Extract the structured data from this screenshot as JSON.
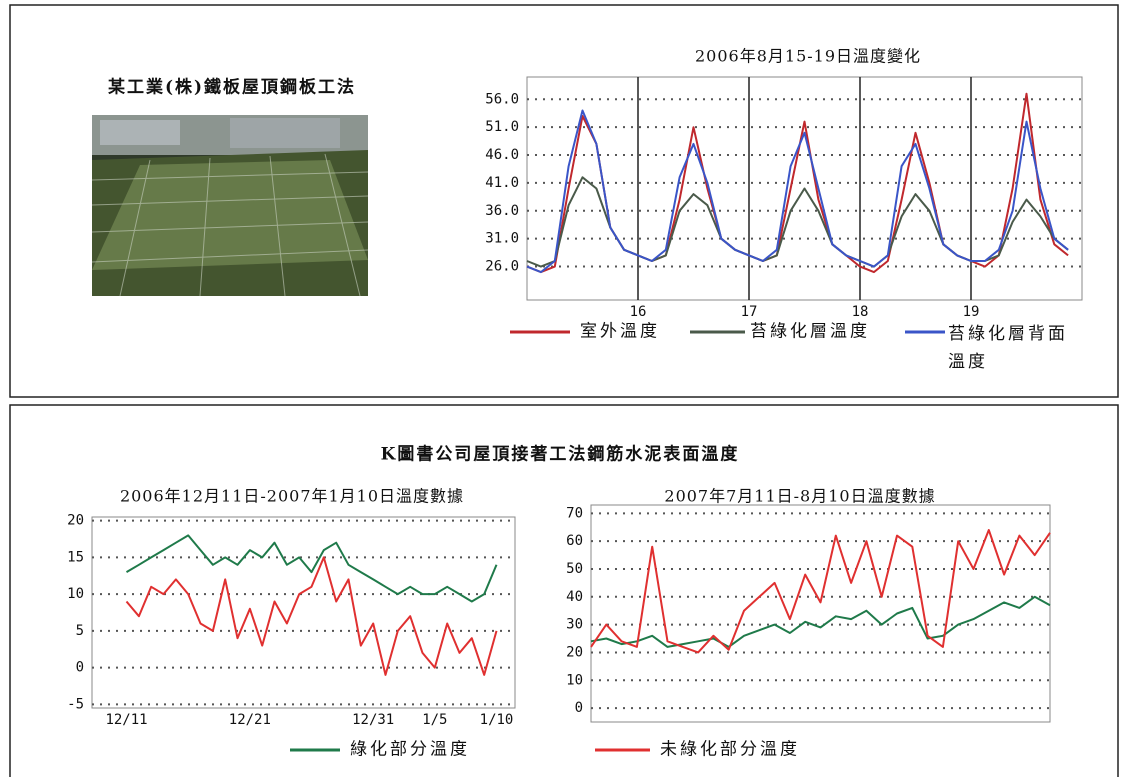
{
  "photo_caption": "某工業(株)鐵板屋頂鋼板工法",
  "section_title": "K圖書公司屋頂接著工法鋼筋水泥表面溫度",
  "chart_data": [
    {
      "type": "line",
      "title": "2006年8月15-19日溫度變化",
      "x": [
        15,
        15.125,
        15.25,
        15.375,
        15.5,
        15.625,
        15.75,
        15.875,
        16,
        16.125,
        16.25,
        16.375,
        16.5,
        16.625,
        16.75,
        16.875,
        17,
        17.125,
        17.25,
        17.375,
        17.5,
        17.625,
        17.75,
        17.875,
        18,
        18.125,
        18.25,
        18.375,
        18.5,
        18.625,
        18.75,
        18.875,
        19,
        19.125,
        19.25,
        19.375,
        19.5,
        19.625,
        19.75,
        19.875
      ],
      "xlim": [
        15,
        20
      ],
      "xticks": [
        16,
        17,
        18,
        19
      ],
      "ylim": [
        20,
        60
      ],
      "yticks": [
        {
          "value": 26,
          "label": "26.0"
        },
        {
          "value": 31,
          "label": "31.0"
        },
        {
          "value": 36,
          "label": "36.0"
        },
        {
          "value": 41,
          "label": "41.0"
        },
        {
          "value": 46,
          "label": "46.0"
        },
        {
          "value": 51,
          "label": "51.0"
        },
        {
          "value": 56,
          "label": "56.0"
        }
      ],
      "grid": true,
      "series": [
        {
          "name": "室外溫度",
          "color": "#c0282d",
          "values": [
            26,
            25,
            26,
            40,
            53,
            48,
            33,
            29,
            28,
            27,
            28,
            38,
            51,
            40,
            31,
            29,
            28,
            27,
            28,
            40,
            52,
            38,
            30,
            28,
            26,
            25,
            27,
            38,
            50,
            41,
            30,
            28,
            27,
            26,
            28,
            40,
            57,
            38,
            30,
            28
          ]
        },
        {
          "name": "苔綠化層溫度",
          "color": "#4a5a4a",
          "values": [
            27,
            26,
            27,
            37,
            42,
            40,
            33,
            29,
            28,
            27,
            28,
            36,
            39,
            37,
            31,
            29,
            28,
            27,
            28,
            36,
            40,
            36,
            30,
            28,
            27,
            26,
            28,
            35,
            39,
            36,
            30,
            28,
            27,
            27,
            28,
            34,
            38,
            35,
            31,
            29
          ]
        },
        {
          "name": "苔綠化層背面溫度",
          "color": "#3a55c8",
          "values": [
            26,
            25,
            27,
            44,
            54,
            48,
            33,
            29,
            28,
            27,
            29,
            42,
            48,
            41,
            31,
            29,
            28,
            27,
            29,
            44,
            50,
            40,
            30,
            28,
            27,
            26,
            28,
            44,
            48,
            40,
            30,
            28,
            27,
            27,
            29,
            36,
            52,
            40,
            31,
            29
          ]
        }
      ]
    },
    {
      "type": "line",
      "title": "2006年12月11日-2007年1月10日溫度數據",
      "x": [
        0,
        1,
        2,
        3,
        4,
        5,
        6,
        7,
        8,
        9,
        10,
        11,
        12,
        13,
        14,
        15,
        16,
        17,
        18,
        19,
        20,
        21,
        22,
        23,
        24,
        25,
        26,
        27,
        28,
        29,
        30
      ],
      "xlim": [
        -2.8,
        31.5
      ],
      "xticks": [
        {
          "value": 0,
          "label": "12/11"
        },
        {
          "value": 10,
          "label": "12/21"
        },
        {
          "value": 20,
          "label": "12/31"
        },
        {
          "value": 25,
          "label": "1/5"
        },
        {
          "value": 30,
          "label": "1/10"
        }
      ],
      "ylim": [
        -5.5,
        20.5
      ],
      "yticks": [
        -5,
        0,
        5,
        10,
        15,
        20
      ],
      "grid": true,
      "series": [
        {
          "name": "綠化部分溫度",
          "color": "#1f7a4a",
          "values": [
            13,
            14,
            15,
            16,
            17,
            18,
            16,
            14,
            15,
            14,
            16,
            15,
            17,
            14,
            15,
            13,
            16,
            17,
            14,
            13,
            12,
            11,
            10,
            11,
            10,
            10,
            11,
            10,
            9,
            10,
            14
          ]
        },
        {
          "name": "未綠化部分溫度",
          "color": "#e03030",
          "values": [
            9,
            7,
            11,
            10,
            12,
            10,
            6,
            5,
            12,
            4,
            8,
            3,
            9,
            6,
            10,
            11,
            15,
            9,
            12,
            3,
            6,
            -1,
            5,
            7,
            2,
            0,
            6,
            2,
            4,
            -1,
            5
          ]
        }
      ]
    },
    {
      "type": "line",
      "title": "2007年7月11日-8月10日溫度數據",
      "ylim": [
        -5,
        73
      ],
      "yticks": [
        0,
        10,
        20,
        30,
        40,
        50,
        60,
        70
      ],
      "grid": true,
      "series": [
        {
          "name": "綠化部分溫度",
          "color": "#1f7a4a",
          "values": [
            24,
            25,
            23,
            24,
            26,
            22,
            23,
            24,
            25,
            22,
            26,
            28,
            30,
            27,
            31,
            29,
            33,
            32,
            35,
            30,
            34,
            36,
            25,
            26,
            30,
            32,
            35,
            38,
            36,
            40,
            37
          ]
        },
        {
          "name": "未綠化部分溫度",
          "color": "#e03030",
          "values": [
            22,
            30,
            24,
            22,
            58,
            24,
            22,
            20,
            26,
            21,
            35,
            40,
            45,
            32,
            48,
            38,
            62,
            45,
            60,
            40,
            62,
            58,
            26,
            22,
            60,
            50,
            64,
            48,
            62,
            55,
            63
          ]
        }
      ]
    }
  ]
}
